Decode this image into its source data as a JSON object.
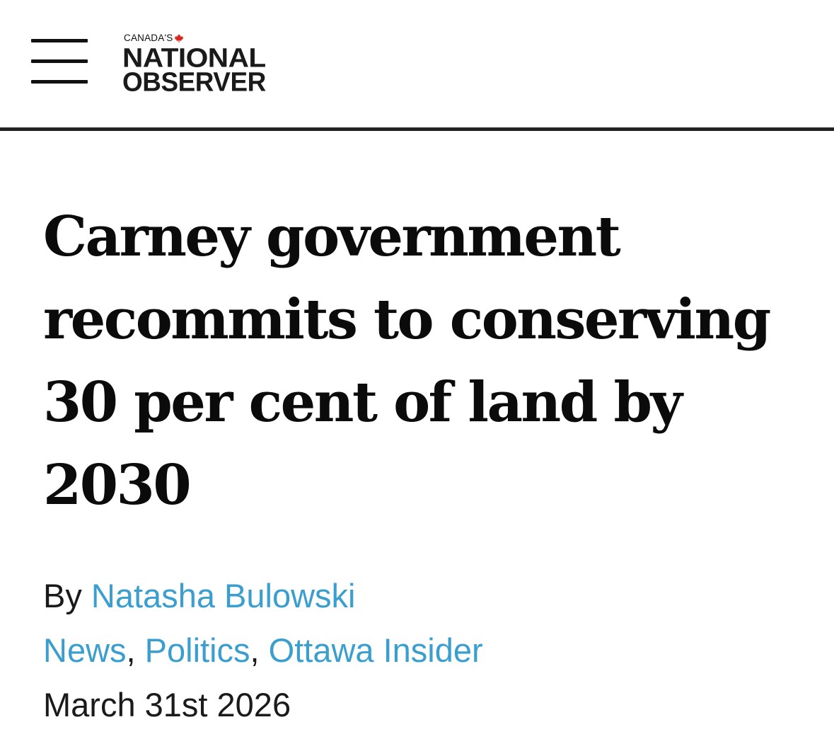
{
  "header": {
    "menu_icon": "hamburger-menu-icon",
    "logo": {
      "top_text": "CANADA'S",
      "line1": "NATIONAL",
      "line2": "OBSERVER",
      "mark_icon": "maple-leaf-icon",
      "mark_color": "#d8261e"
    }
  },
  "article": {
    "headline": "Carney government recommits to conserving 30 per cent of land by 2030",
    "byline_prefix": "By",
    "author": "Natasha Bulowski",
    "categories": [
      "News",
      "Politics",
      "Ottawa Insider"
    ],
    "category_separator": ",",
    "date": "March 31st 2026"
  },
  "colors": {
    "link": "#3a9fcf",
    "text": "#111111",
    "rule": "#222222"
  }
}
